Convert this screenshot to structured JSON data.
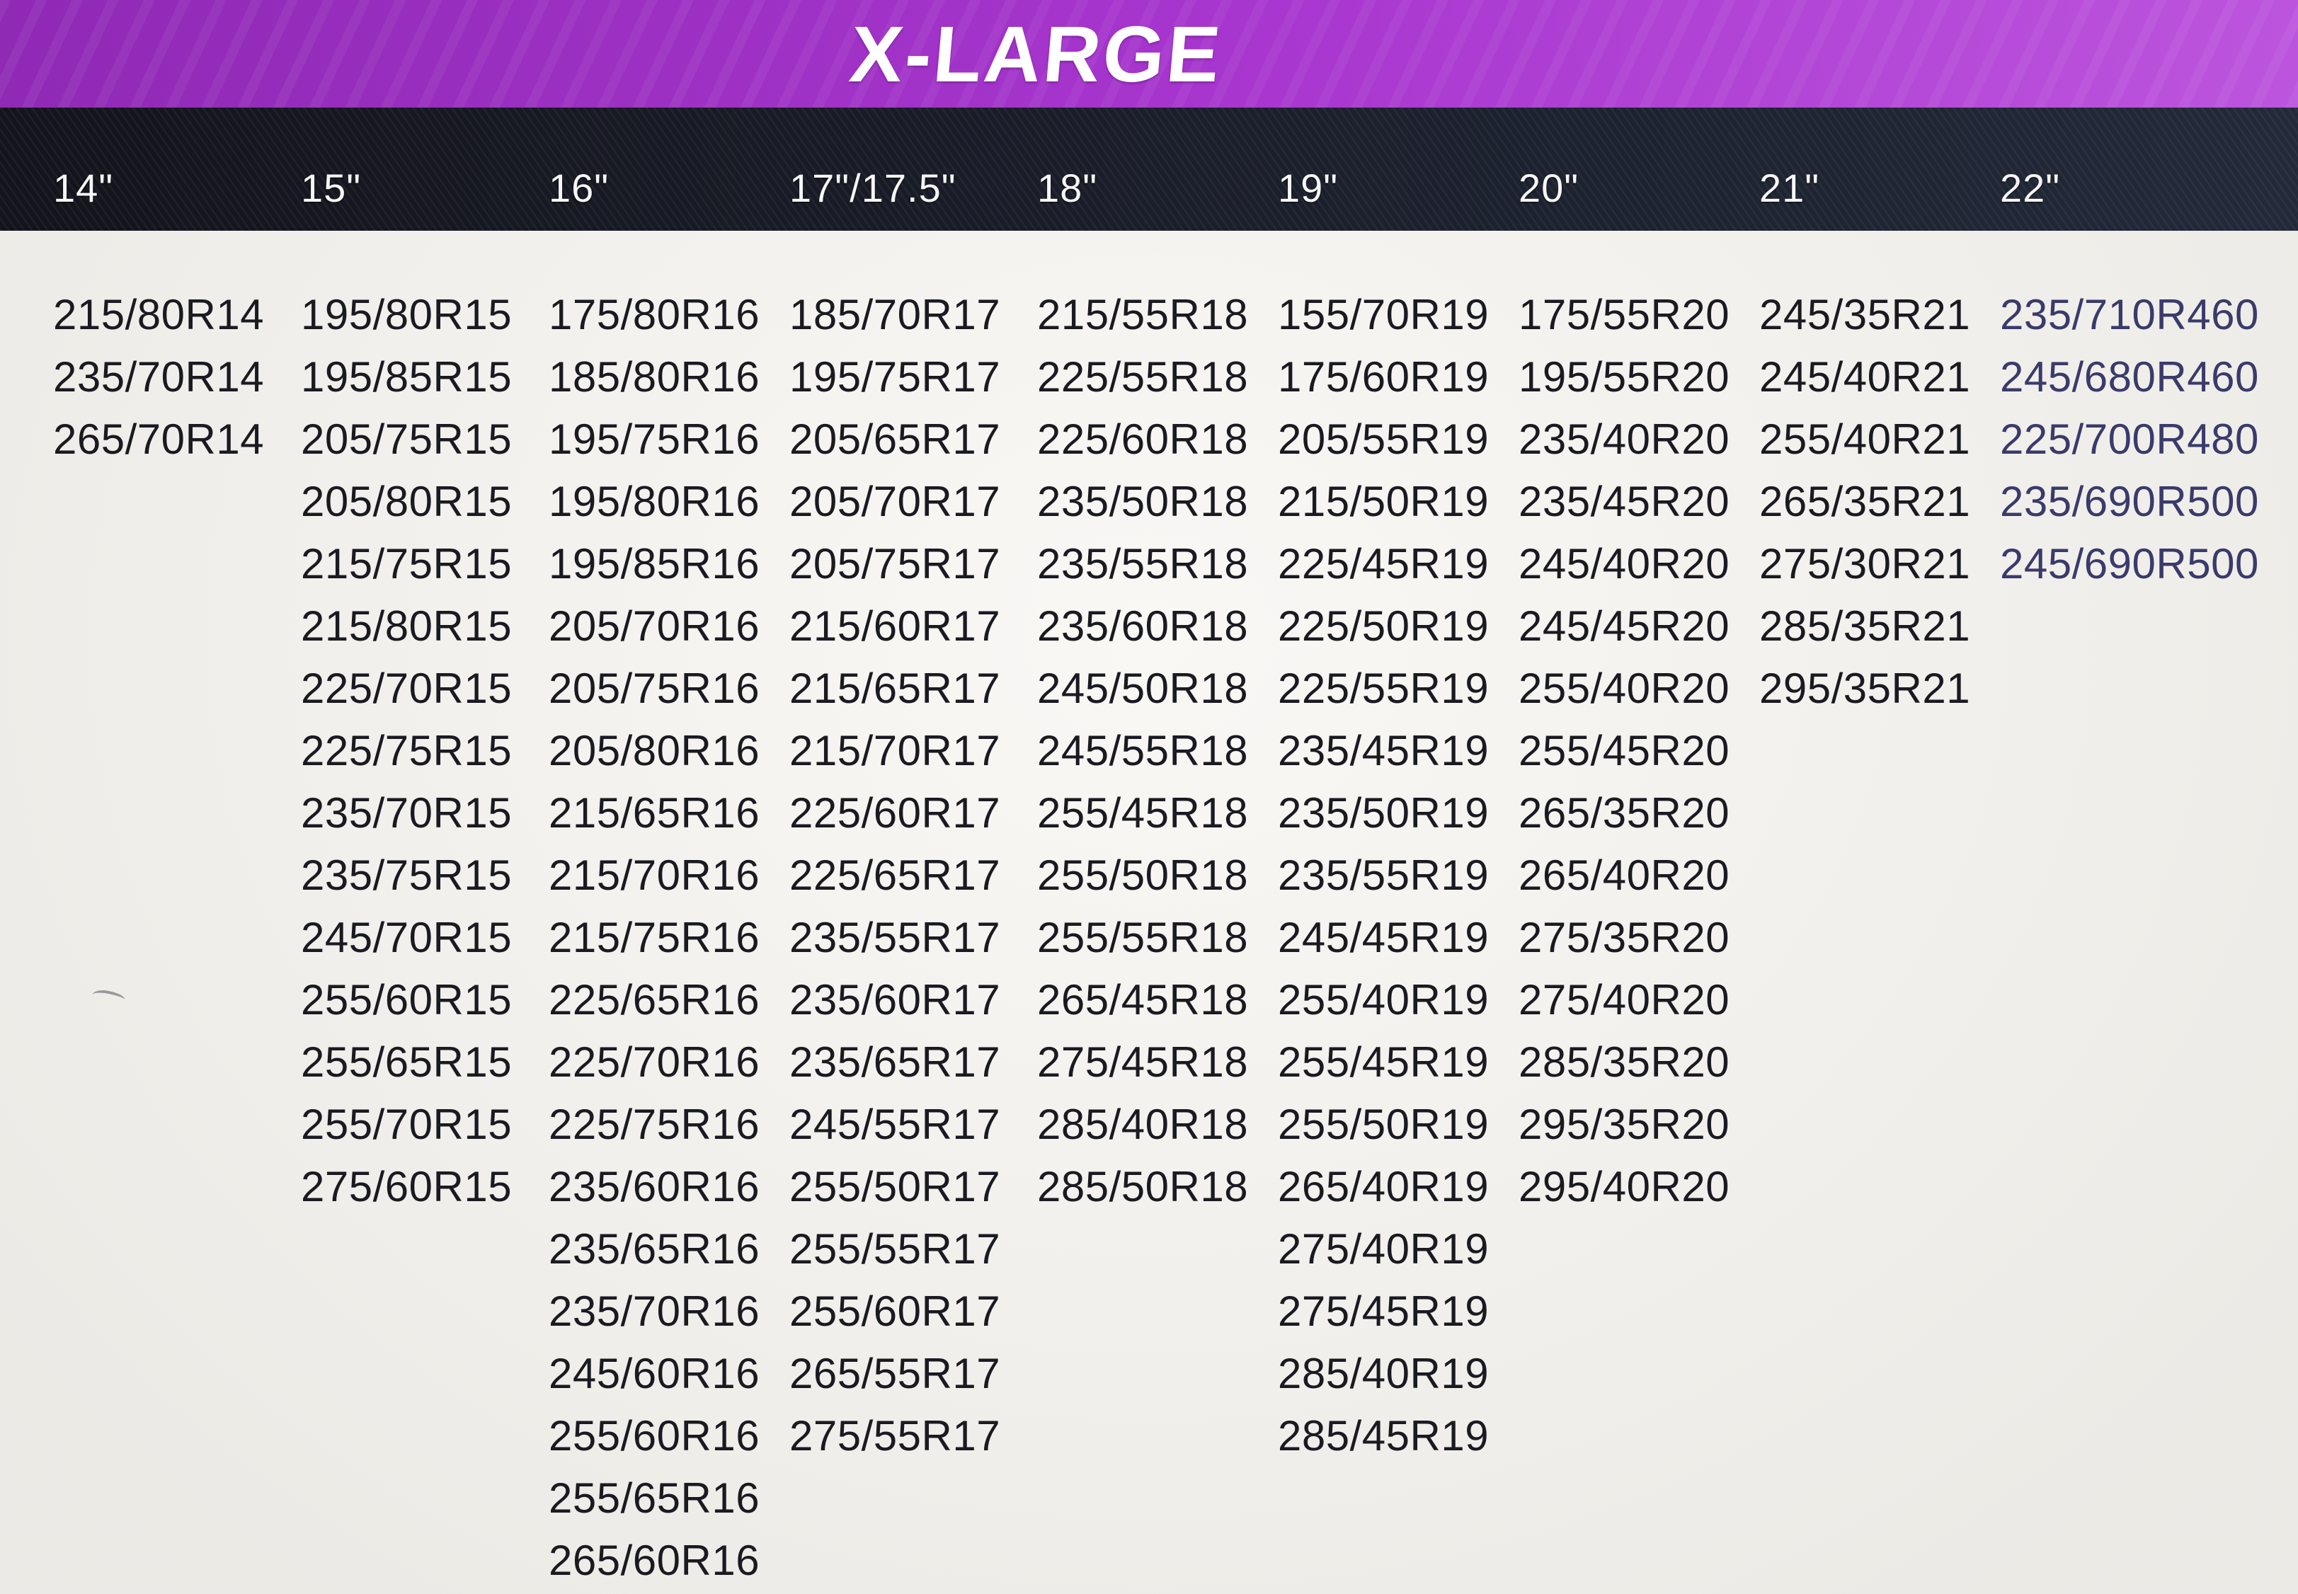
{
  "title": "X-LARGE",
  "colors": {
    "banner_purple": "#a836cf",
    "band_dark": "#13131b",
    "header_text": "#ffffff",
    "body_text": "#1a1a21",
    "pax_column_text": "#3a3a6b",
    "page_background": "#f4f2ed"
  },
  "table": {
    "columns": [
      {
        "header": "14\"",
        "sizes": [
          "215/80R14",
          "235/70R14",
          "265/70R14"
        ]
      },
      {
        "header": "15\"",
        "sizes": [
          "195/80R15",
          "195/85R15",
          "205/75R15",
          "205/80R15",
          "215/75R15",
          "215/80R15",
          "225/70R15",
          "225/75R15",
          "235/70R15",
          "235/75R15",
          "245/70R15",
          "255/60R15",
          "255/65R15",
          "255/70R15",
          "275/60R15"
        ]
      },
      {
        "header": "16\"",
        "sizes": [
          "175/80R16",
          "185/80R16",
          "195/75R16",
          "195/80R16",
          "195/85R16",
          "205/70R16",
          "205/75R16",
          "205/80R16",
          "215/65R16",
          "215/70R16",
          "215/75R16",
          "225/65R16",
          "225/70R16",
          "225/75R16",
          "235/60R16",
          "235/65R16",
          "235/70R16",
          "245/60R16",
          "255/60R16",
          "255/65R16",
          "265/60R16"
        ]
      },
      {
        "header": "17\"/17.5\"",
        "sizes": [
          "185/70R17",
          "195/75R17",
          "205/65R17",
          "205/70R17",
          "205/75R17",
          "215/60R17",
          "215/65R17",
          "215/70R17",
          "225/60R17",
          "225/65R17",
          "235/55R17",
          "235/60R17",
          "235/65R17",
          "245/55R17",
          "255/50R17",
          "255/55R17",
          "255/60R17",
          "265/55R17",
          "275/55R17"
        ]
      },
      {
        "header": "18\"",
        "sizes": [
          "215/55R18",
          "225/55R18",
          "225/60R18",
          "235/50R18",
          "235/55R18",
          "235/60R18",
          "245/50R18",
          "245/55R18",
          "255/45R18",
          "255/50R18",
          "255/55R18",
          "265/45R18",
          "275/45R18",
          "285/40R18",
          "285/50R18"
        ]
      },
      {
        "header": "19\"",
        "sizes": [
          "155/70R19",
          "175/60R19",
          "205/55R19",
          "215/50R19",
          "225/45R19",
          "225/50R19",
          "225/55R19",
          "235/45R19",
          "235/50R19",
          "235/55R19",
          "245/45R19",
          "255/40R19",
          "255/45R19",
          "255/50R19",
          "265/40R19",
          "275/40R19",
          "275/45R19",
          "285/40R19",
          "285/45R19"
        ]
      },
      {
        "header": "20\"",
        "sizes": [
          "175/55R20",
          "195/55R20",
          "235/40R20",
          "235/45R20",
          "245/40R20",
          "245/45R20",
          "255/40R20",
          "255/45R20",
          "265/35R20",
          "265/40R20",
          "275/35R20",
          "275/40R20",
          "285/35R20",
          "295/35R20",
          "295/40R20"
        ]
      },
      {
        "header": "21\"",
        "sizes": [
          "245/35R21",
          "245/40R21",
          "255/40R21",
          "265/35R21",
          "275/30R21",
          "285/35R21",
          "295/35R21"
        ]
      },
      {
        "header": "22\"",
        "highlight": true,
        "sizes": [
          "235/710R460",
          "245/680R460",
          "225/700R480",
          "235/690R500",
          "245/690R500"
        ]
      }
    ]
  }
}
